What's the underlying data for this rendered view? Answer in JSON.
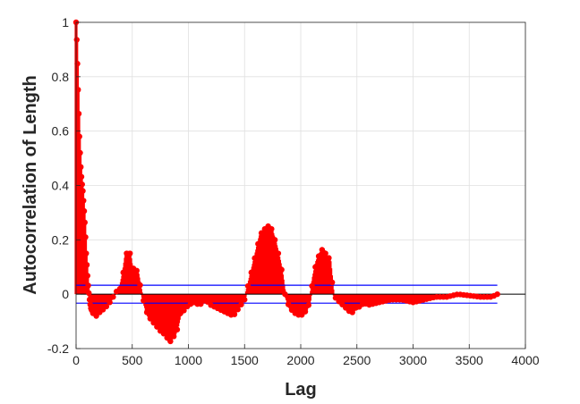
{
  "chart_data": {
    "type": "line",
    "title": "",
    "xlabel": "Lag",
    "ylabel": "Autocorrelation of Length",
    "xlim": [
      0,
      4000
    ],
    "ylim": [
      -0.2,
      1
    ],
    "xticks": [
      0,
      500,
      1000,
      1500,
      2000,
      2500,
      3000,
      3500,
      4000
    ],
    "yticks": [
      -0.2,
      0,
      0.2,
      0.4,
      0.6,
      0.8,
      1
    ],
    "grid": true,
    "legend": "none",
    "confidence_bounds": [
      0.033,
      -0.033
    ],
    "max_lag": 3750,
    "colors": {
      "stem": "#ff0000",
      "bounds": "#0000ff",
      "zero_line": "#000000",
      "grid": "#e0e0e0"
    },
    "series": [
      {
        "x": [
          0,
          5,
          10,
          15,
          20,
          25,
          30,
          40,
          50,
          60,
          70,
          80,
          90,
          100,
          110,
          120,
          130,
          150,
          180,
          200,
          230,
          260,
          300,
          330,
          360,
          390,
          420,
          440,
          460,
          480,
          500,
          520,
          550,
          580,
          610,
          640,
          680,
          720,
          760,
          800,
          830,
          860,
          880,
          900,
          930,
          960,
          1000,
          1050,
          1100,
          1150,
          1200,
          1250,
          1300,
          1350,
          1400,
          1450,
          1500,
          1530,
          1560,
          1600,
          1640,
          1680,
          1710,
          1740,
          1770,
          1800,
          1830,
          1860,
          1900,
          1950,
          2000,
          2050,
          2080,
          2110,
          2140,
          2170,
          2200,
          2230,
          2260,
          2290,
          2320,
          2350,
          2400,
          2450,
          2480,
          2500,
          2530,
          2560,
          2600,
          2700,
          2800,
          2900,
          3000,
          3100,
          3200,
          3300,
          3400,
          3500,
          3600,
          3700,
          3750
        ],
        "y": [
          1.0,
          0.95,
          0.88,
          0.8,
          0.72,
          0.65,
          0.58,
          0.48,
          0.42,
          0.38,
          0.32,
          0.25,
          0.15,
          0.08,
          0.02,
          -0.02,
          -0.05,
          -0.07,
          -0.08,
          -0.07,
          -0.06,
          -0.05,
          -0.03,
          -0.01,
          0.01,
          0.02,
          0.08,
          0.14,
          0.16,
          0.15,
          0.09,
          0.1,
          0.08,
          0.01,
          -0.04,
          -0.08,
          -0.1,
          -0.12,
          -0.14,
          -0.15,
          -0.18,
          -0.16,
          -0.15,
          -0.13,
          -0.07,
          -0.06,
          -0.04,
          -0.03,
          -0.04,
          -0.02,
          -0.04,
          -0.05,
          -0.06,
          -0.07,
          -0.08,
          -0.05,
          -0.02,
          0.03,
          0.08,
          0.15,
          0.22,
          0.24,
          0.25,
          0.24,
          0.2,
          0.15,
          0.09,
          0.0,
          -0.05,
          -0.07,
          -0.08,
          -0.06,
          -0.03,
          0.06,
          0.12,
          0.15,
          0.17,
          0.14,
          0.13,
          0.0,
          -0.02,
          -0.03,
          -0.05,
          -0.07,
          -0.06,
          -0.04,
          -0.05,
          -0.03,
          -0.04,
          -0.03,
          -0.02,
          -0.02,
          -0.03,
          -0.02,
          -0.01,
          -0.01,
          0.0,
          -0.005,
          -0.01,
          -0.01,
          0.0
        ]
      }
    ]
  }
}
